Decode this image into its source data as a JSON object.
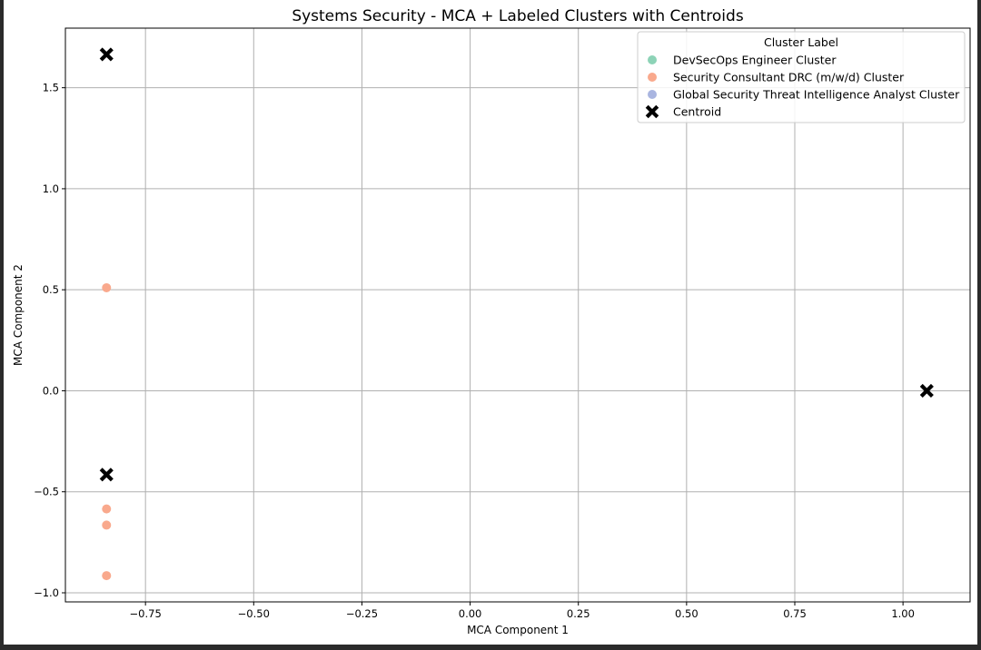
{
  "chart_data": {
    "type": "scatter",
    "title": "Systems Security - MCA + Labeled Clusters with Centroids",
    "xlabel": "MCA Component 1",
    "ylabel": "MCA Component 2",
    "xlim": [
      -0.935,
      1.155
    ],
    "ylim": [
      -1.045,
      1.795
    ],
    "xticks": [
      -0.75,
      -0.5,
      -0.25,
      0.0,
      0.25,
      0.5,
      0.75,
      1.0
    ],
    "xtick_labels": [
      "−0.75",
      "−0.50",
      "−0.25",
      "0.00",
      "0.25",
      "0.50",
      "0.75",
      "1.00"
    ],
    "yticks": [
      -1.0,
      -0.5,
      0.0,
      0.5,
      1.0,
      1.5
    ],
    "ytick_labels": [
      "−1.0",
      "−0.5",
      "0.0",
      "0.5",
      "1.0",
      "1.5"
    ],
    "grid": true,
    "legend_title": "Cluster Label",
    "legend_position": "top-right",
    "series": [
      {
        "name": "DevSecOps Engineer Cluster",
        "color": "#8dd3b7",
        "marker": "circle",
        "points": []
      },
      {
        "name": "Security Consultant DRC (m/w/d) Cluster",
        "color": "#f9a98d",
        "marker": "circle",
        "points": [
          [
            -0.84,
            0.51
          ],
          [
            -0.84,
            -0.585
          ],
          [
            -0.84,
            -0.665
          ],
          [
            -0.84,
            -0.915
          ]
        ]
      },
      {
        "name": "Global Security Threat Intelligence Analyst Cluster",
        "color": "#a9b5e0",
        "marker": "circle",
        "points": []
      },
      {
        "name": "Centroid",
        "color": "#000000",
        "marker": "x",
        "points": [
          [
            -0.84,
            1.665
          ],
          [
            -0.84,
            -0.415
          ],
          [
            1.055,
            0.0
          ]
        ]
      }
    ]
  }
}
